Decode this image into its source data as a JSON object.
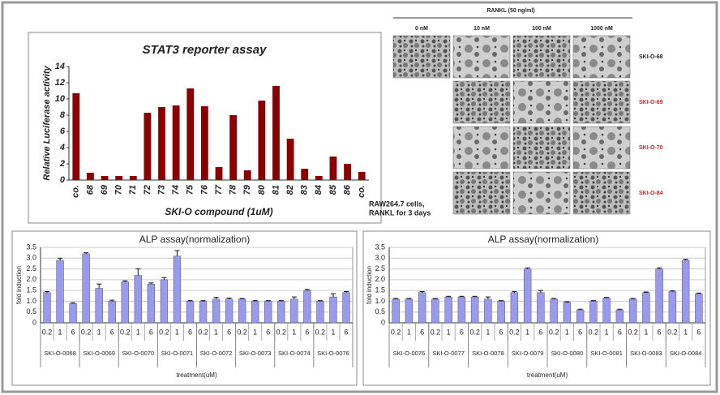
{
  "chart_data": [
    {
      "type": "bar",
      "title": "STAT3 reporter assay",
      "x_label": "SKI-O compound (1uM)",
      "y_label": "Relative Luciferase activity",
      "categories": [
        "co.",
        "68",
        "69",
        "70",
        "71",
        "72",
        "73",
        "74",
        "75",
        "76",
        "77",
        "78",
        "79",
        "80",
        "81",
        "82",
        "83",
        "84",
        "85",
        "86",
        "co."
      ],
      "values": [
        10.7,
        0.9,
        0.5,
        0.5,
        0.5,
        8.3,
        9.0,
        9.2,
        11.3,
        9.1,
        1.6,
        8.0,
        1.2,
        9.8,
        11.6,
        5.1,
        1.4,
        0.5,
        2.9,
        2.0,
        1.0
      ],
      "color": "#8b0000",
      "ylim": [
        0,
        14
      ],
      "yticks": [
        0,
        2,
        4,
        6,
        8,
        10,
        12,
        14
      ],
      "grid": false
    },
    {
      "type": "bar",
      "title": "ALP assay(normalization)",
      "x_label": "treatment(uM)",
      "y_label": "fold induction",
      "groups": [
        "SKI-O-0068",
        "SKI-O-0069",
        "SKI-O-0070",
        "SKI-O-0071",
        "SKI-O-0072",
        "SKI-O-0073",
        "SKI-O-0074",
        "SKI-O-0076"
      ],
      "categories": [
        "0.2",
        "1",
        "6",
        "0.2",
        "1",
        "6",
        "0.2",
        "1",
        "6",
        "0.2",
        "1",
        "6",
        "0.2",
        "1",
        "6",
        "0.2",
        "1",
        "6",
        "0.2",
        "1",
        "6",
        "0.2",
        "1",
        "6"
      ],
      "values": [
        1.4,
        2.9,
        0.9,
        3.2,
        1.6,
        1.0,
        1.9,
        2.2,
        1.8,
        2.0,
        3.1,
        1.0,
        1.0,
        1.1,
        1.1,
        1.1,
        1.0,
        1.0,
        1.0,
        1.1,
        1.5,
        1.0,
        1.2,
        1.4
      ],
      "errors": [
        0.05,
        0.1,
        0.03,
        0.05,
        0.2,
        0.05,
        0.05,
        0.3,
        0.05,
        0.1,
        0.25,
        0.03,
        0.03,
        0.08,
        0.05,
        0.03,
        0.03,
        0.03,
        0.03,
        0.1,
        0.05,
        0.03,
        0.15,
        0.05
      ],
      "color": "#9999ee",
      "ylim": [
        0,
        3.5
      ],
      "yticks": [
        0,
        0.5,
        {
          "value": 1,
          "label": "1.0"
        },
        1.5,
        {
          "value": 2,
          "label": "2.0"
        },
        2.5,
        {
          "value": 3,
          "label": "3.0"
        },
        3.5
      ],
      "grid": true
    },
    {
      "type": "bar",
      "title": "ALP assay(normalization)",
      "x_label": "treatment(uM)",
      "y_label": "fold induction",
      "groups": [
        "SKI-O-0076",
        "SKI-O-0077",
        "SKI-O-0078",
        "SKI-O-0079",
        "SKI-O-0080",
        "SKI-O-0081",
        "SKI-O-0083",
        "SKI-O-0084"
      ],
      "categories": [
        "0.2",
        "1",
        "6",
        "0.2",
        "1",
        "6",
        "0.2",
        "1",
        "6",
        "0.2",
        "1",
        "6",
        "0.2",
        "1",
        "6",
        "0.2",
        "1",
        "6",
        "0.2",
        "1",
        "6",
        "0.2",
        "1",
        "6"
      ],
      "values": [
        1.1,
        1.1,
        1.4,
        1.1,
        1.2,
        1.2,
        1.2,
        1.1,
        1.0,
        1.4,
        2.5,
        1.4,
        1.1,
        0.95,
        0.6,
        1.0,
        1.15,
        0.6,
        1.1,
        1.4,
        2.5,
        1.45,
        2.9,
        1.35
      ],
      "errors": [
        0.03,
        0.03,
        0.05,
        0.03,
        0.03,
        0.03,
        0.03,
        0.1,
        0.03,
        0.05,
        0.05,
        0.1,
        0.03,
        0.03,
        0.03,
        0.03,
        0.03,
        0.03,
        0.03,
        0.03,
        0.05,
        0.03,
        0.05,
        0.03
      ],
      "color": "#9999ee",
      "ylim": [
        0,
        3.5
      ],
      "yticks": [
        0,
        0.5,
        {
          "value": 1,
          "label": "1.0"
        },
        1.5,
        {
          "value": 2,
          "label": "2.0"
        },
        2.5,
        {
          "value": 3,
          "label": "3.0"
        },
        3.5
      ],
      "grid": true
    }
  ],
  "image_panel": {
    "header": "RANKL (50 ng/ml)",
    "columns": [
      "0 nM",
      "10 nM",
      "100 nM",
      "1000 nM"
    ],
    "rows": [
      {
        "label": "SKI-O-68",
        "color": "#222222"
      },
      {
        "label": "SKI-O-69",
        "color": "#cc2222"
      },
      {
        "label": "SKI-O-70",
        "color": "#cc2222"
      },
      {
        "label": "SKI-O-84",
        "color": "#cc2222"
      }
    ],
    "caption": [
      "RAW264.7 cells,",
      "RANKL for 3 days"
    ]
  }
}
